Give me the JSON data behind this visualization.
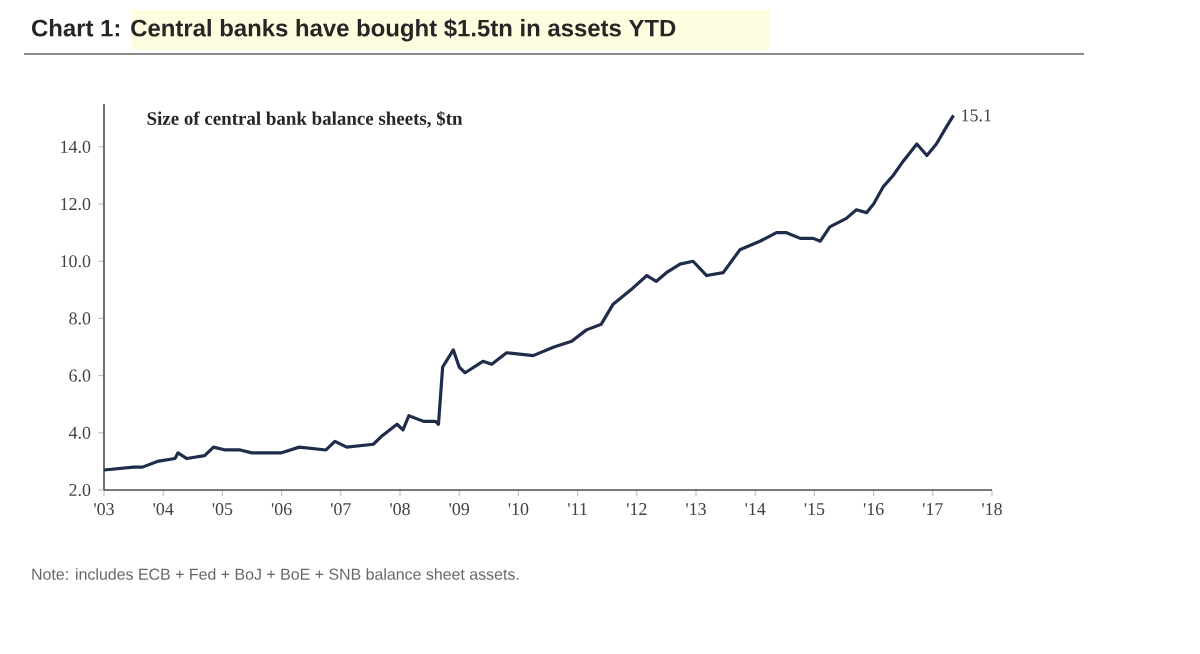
{
  "chart_data": {
    "type": "line",
    "title": "Chart 1: Central banks have bought $1.5tn in assets YTD",
    "subtitle": "Size of central bank balance sheets, $tn",
    "annotations": [
      {
        "text": "15.1",
        "x": 2017.35,
        "y": 15.1
      },
      "Note: includes ECB + Fed + BoJ + BoE + SNB balance sheet assets."
    ],
    "xlim": [
      2003,
      2018
    ],
    "ylim": [
      2,
      15.5
    ],
    "xticks": [
      {
        "value": 2003,
        "label": "'03"
      },
      {
        "value": 2004,
        "label": "'04"
      },
      {
        "value": 2005,
        "label": "'05"
      },
      {
        "value": 2006,
        "label": "'06"
      },
      {
        "value": 2007,
        "label": "'07"
      },
      {
        "value": 2008,
        "label": "'08"
      },
      {
        "value": 2009,
        "label": "'09"
      },
      {
        "value": 2010,
        "label": "'10"
      },
      {
        "value": 2011,
        "label": "'11"
      },
      {
        "value": 2012,
        "label": "'12"
      },
      {
        "value": 2013,
        "label": "'13"
      },
      {
        "value": 2014,
        "label": "'14"
      },
      {
        "value": 2015,
        "label": "'15"
      },
      {
        "value": 2016,
        "label": "'16"
      },
      {
        "value": 2017,
        "label": "'17"
      },
      {
        "value": 2018,
        "label": "'18"
      }
    ],
    "yticks": [
      {
        "value": 2,
        "label": "2.0"
      },
      {
        "value": 4,
        "label": "4.0"
      },
      {
        "value": 6,
        "label": "6.0"
      },
      {
        "value": 8,
        "label": "8.0"
      },
      {
        "value": 10,
        "label": "10.0"
      },
      {
        "value": 12,
        "label": "12.0"
      },
      {
        "value": 14,
        "label": "14.0"
      }
    ],
    "marker": "none",
    "line_style": "solid",
    "series": [
      {
        "color": "#1f2d4a",
        "x": [
          2003.0,
          2003.5,
          2003.65,
          2003.9,
          2004.2,
          2004.25,
          2004.4,
          2004.7,
          2004.85,
          2005.05,
          2005.3,
          2005.5,
          2006.0,
          2006.3,
          2006.75,
          2006.9,
          2007.1,
          2007.55,
          2007.7,
          2007.95,
          2008.05,
          2008.15,
          2008.4,
          2008.6,
          2008.65,
          2008.72,
          2008.9,
          2009.0,
          2009.1,
          2009.4,
          2009.55,
          2009.8,
          2010.25,
          2010.6,
          2010.9,
          2011.15,
          2011.4,
          2011.6,
          2011.9,
          2012.17,
          2012.33,
          2012.5,
          2012.73,
          2012.95,
          2013.18,
          2013.46,
          2013.74,
          2014.08,
          2014.36,
          2014.53,
          2014.76,
          2014.98,
          2015.1,
          2015.26,
          2015.54,
          2015.71,
          2015.88,
          2016.0,
          2016.16,
          2016.33,
          2016.5,
          2016.73,
          2016.9,
          2017.06,
          2017.23,
          2017.35
        ],
        "values": [
          2.7,
          2.8,
          2.8,
          3.0,
          3.1,
          3.3,
          3.1,
          3.2,
          3.5,
          3.4,
          3.4,
          3.3,
          3.3,
          3.5,
          3.4,
          3.7,
          3.5,
          3.6,
          3.9,
          4.3,
          4.1,
          4.6,
          4.4,
          4.4,
          4.3,
          6.3,
          6.9,
          6.3,
          6.1,
          6.5,
          6.4,
          6.8,
          6.7,
          7.0,
          7.2,
          7.6,
          7.8,
          8.5,
          9.0,
          9.5,
          9.3,
          9.6,
          9.9,
          10.0,
          9.5,
          9.6,
          10.4,
          10.7,
          11.0,
          11.0,
          10.8,
          10.8,
          10.7,
          11.2,
          11.5,
          11.8,
          11.7,
          12.0,
          12.6,
          13.0,
          13.5,
          14.1,
          13.7,
          14.1,
          14.7,
          15.1
        ]
      }
    ]
  }
}
